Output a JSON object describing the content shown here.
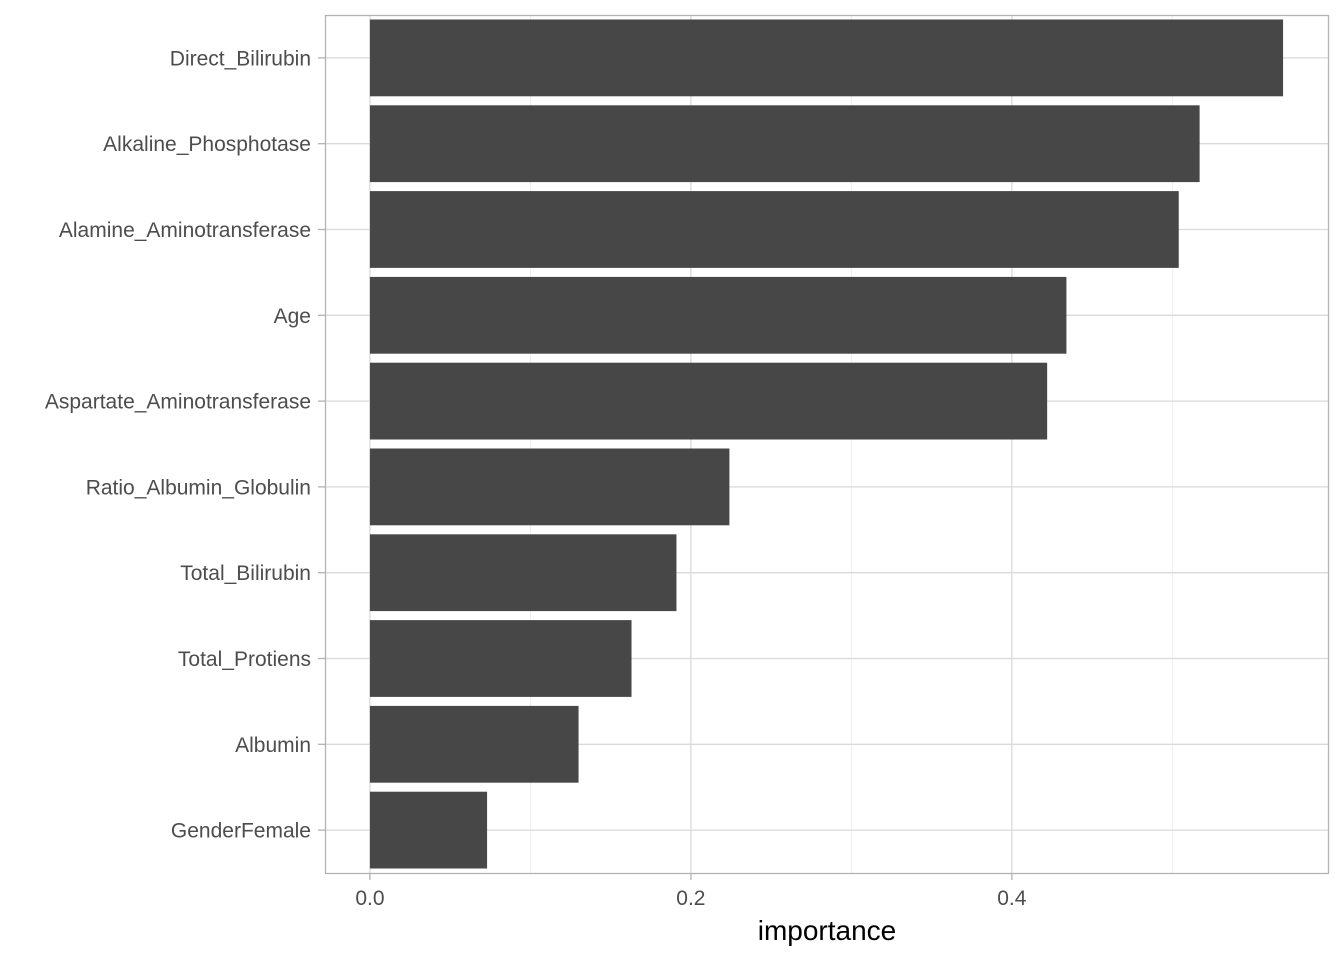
{
  "chart_data": {
    "type": "bar",
    "orientation": "horizontal",
    "title": "",
    "xlabel": "importance",
    "ylabel": "",
    "xlim": [
      -0.028,
      0.597
    ],
    "x_ticks": [
      0.0,
      0.2,
      0.4
    ],
    "x_tick_labels": [
      "0.0",
      "0.2",
      "0.4"
    ],
    "grid": true,
    "legend": "none",
    "bar_color": "#474747",
    "categories": [
      "Direct_Bilirubin",
      "Alkaline_Phosphotase",
      "Alamine_Aminotransferase",
      "Age",
      "Aspartate_Aminotransferase",
      "Ratio_Albumin_Globulin",
      "Total_Bilirubin",
      "Total_Protiens",
      "Albumin",
      "GenderFemale"
    ],
    "values": [
      0.569,
      0.517,
      0.504,
      0.434,
      0.422,
      0.224,
      0.191,
      0.163,
      0.13,
      0.073
    ]
  }
}
